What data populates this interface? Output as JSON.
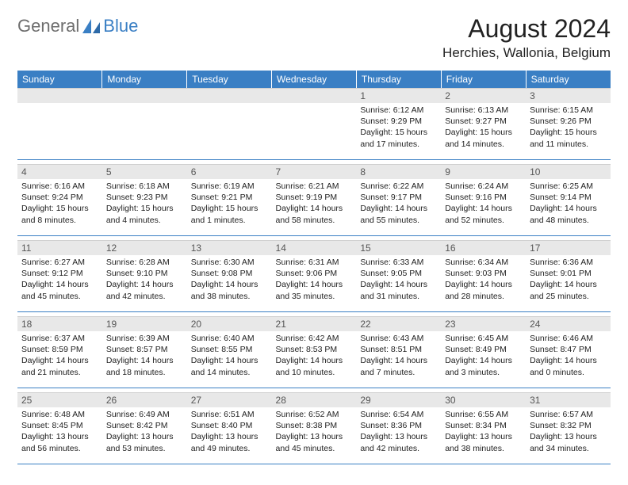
{
  "logo": {
    "text_gray": "General",
    "text_blue": "Blue"
  },
  "title": "August 2024",
  "location": "Herchies, Wallonia, Belgium",
  "colors": {
    "header_bg": "#3a7fc4",
    "header_text": "#ffffff",
    "daynum_bg": "#e8e8e8",
    "row_border": "#3a7fc4",
    "logo_gray": "#6e6e6e",
    "logo_blue": "#3a7fc4"
  },
  "day_labels": [
    "Sunday",
    "Monday",
    "Tuesday",
    "Wednesday",
    "Thursday",
    "Friday",
    "Saturday"
  ],
  "weeks": [
    [
      null,
      null,
      null,
      null,
      {
        "n": "1",
        "sr": "6:12 AM",
        "ss": "9:29 PM",
        "dh": "15",
        "dm": "17"
      },
      {
        "n": "2",
        "sr": "6:13 AM",
        "ss": "9:27 PM",
        "dh": "15",
        "dm": "14"
      },
      {
        "n": "3",
        "sr": "6:15 AM",
        "ss": "9:26 PM",
        "dh": "15",
        "dm": "11"
      }
    ],
    [
      {
        "n": "4",
        "sr": "6:16 AM",
        "ss": "9:24 PM",
        "dh": "15",
        "dm": "8"
      },
      {
        "n": "5",
        "sr": "6:18 AM",
        "ss": "9:23 PM",
        "dh": "15",
        "dm": "4"
      },
      {
        "n": "6",
        "sr": "6:19 AM",
        "ss": "9:21 PM",
        "dh": "15",
        "dm": "1"
      },
      {
        "n": "7",
        "sr": "6:21 AM",
        "ss": "9:19 PM",
        "dh": "14",
        "dm": "58"
      },
      {
        "n": "8",
        "sr": "6:22 AM",
        "ss": "9:17 PM",
        "dh": "14",
        "dm": "55"
      },
      {
        "n": "9",
        "sr": "6:24 AM",
        "ss": "9:16 PM",
        "dh": "14",
        "dm": "52"
      },
      {
        "n": "10",
        "sr": "6:25 AM",
        "ss": "9:14 PM",
        "dh": "14",
        "dm": "48"
      }
    ],
    [
      {
        "n": "11",
        "sr": "6:27 AM",
        "ss": "9:12 PM",
        "dh": "14",
        "dm": "45"
      },
      {
        "n": "12",
        "sr": "6:28 AM",
        "ss": "9:10 PM",
        "dh": "14",
        "dm": "42"
      },
      {
        "n": "13",
        "sr": "6:30 AM",
        "ss": "9:08 PM",
        "dh": "14",
        "dm": "38"
      },
      {
        "n": "14",
        "sr": "6:31 AM",
        "ss": "9:06 PM",
        "dh": "14",
        "dm": "35"
      },
      {
        "n": "15",
        "sr": "6:33 AM",
        "ss": "9:05 PM",
        "dh": "14",
        "dm": "31"
      },
      {
        "n": "16",
        "sr": "6:34 AM",
        "ss": "9:03 PM",
        "dh": "14",
        "dm": "28"
      },
      {
        "n": "17",
        "sr": "6:36 AM",
        "ss": "9:01 PM",
        "dh": "14",
        "dm": "25"
      }
    ],
    [
      {
        "n": "18",
        "sr": "6:37 AM",
        "ss": "8:59 PM",
        "dh": "14",
        "dm": "21"
      },
      {
        "n": "19",
        "sr": "6:39 AM",
        "ss": "8:57 PM",
        "dh": "14",
        "dm": "18"
      },
      {
        "n": "20",
        "sr": "6:40 AM",
        "ss": "8:55 PM",
        "dh": "14",
        "dm": "14"
      },
      {
        "n": "21",
        "sr": "6:42 AM",
        "ss": "8:53 PM",
        "dh": "14",
        "dm": "10"
      },
      {
        "n": "22",
        "sr": "6:43 AM",
        "ss": "8:51 PM",
        "dh": "14",
        "dm": "7"
      },
      {
        "n": "23",
        "sr": "6:45 AM",
        "ss": "8:49 PM",
        "dh": "14",
        "dm": "3"
      },
      {
        "n": "24",
        "sr": "6:46 AM",
        "ss": "8:47 PM",
        "dh": "14",
        "dm": "0"
      }
    ],
    [
      {
        "n": "25",
        "sr": "6:48 AM",
        "ss": "8:45 PM",
        "dh": "13",
        "dm": "56"
      },
      {
        "n": "26",
        "sr": "6:49 AM",
        "ss": "8:42 PM",
        "dh": "13",
        "dm": "53"
      },
      {
        "n": "27",
        "sr": "6:51 AM",
        "ss": "8:40 PM",
        "dh": "13",
        "dm": "49"
      },
      {
        "n": "28",
        "sr": "6:52 AM",
        "ss": "8:38 PM",
        "dh": "13",
        "dm": "45"
      },
      {
        "n": "29",
        "sr": "6:54 AM",
        "ss": "8:36 PM",
        "dh": "13",
        "dm": "42"
      },
      {
        "n": "30",
        "sr": "6:55 AM",
        "ss": "8:34 PM",
        "dh": "13",
        "dm": "38"
      },
      {
        "n": "31",
        "sr": "6:57 AM",
        "ss": "8:32 PM",
        "dh": "13",
        "dm": "34"
      }
    ]
  ],
  "labels": {
    "sunrise": "Sunrise: ",
    "sunset": "Sunset: ",
    "daylight_prefix": "Daylight: ",
    "hours_word": " hours",
    "and_word": "and ",
    "minutes_word": " minutes."
  }
}
